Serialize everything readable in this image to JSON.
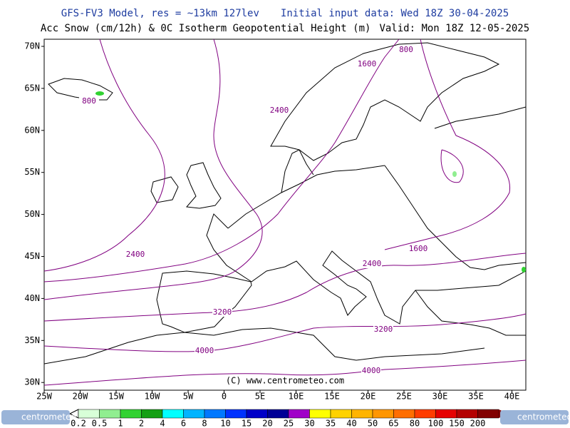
{
  "header": {
    "model": "GFS-FV3 Model, res = ~13km 127lev",
    "init": "Initial input data: Wed 18Z 30-04-2025",
    "product": "Acc Snow (cm/12h) & 0C Isotherm Geopotential Height (m)",
    "valid": "Valid: Mon 18Z 12-05-2025"
  },
  "map": {
    "lat_labels": [
      "70N",
      "65N",
      "60N",
      "55N",
      "50N",
      "45N",
      "40N",
      "35N",
      "30N"
    ],
    "lon_labels": [
      "25W",
      "20W",
      "15W",
      "10W",
      "5W",
      "0",
      "5E",
      "10E",
      "15E",
      "20E",
      "25E",
      "30E",
      "35E",
      "40E"
    ],
    "contour_labels": [
      "800",
      "1600",
      "800",
      "2400",
      "2400",
      "1600",
      "2400",
      "3200",
      "3200",
      "4000",
      "4000"
    ],
    "copyright": "(C) www.centrometeo.com"
  },
  "legend": {
    "labels": [
      "0.2",
      "0.5",
      "1",
      "2",
      "4",
      "6",
      "8",
      "10",
      "15",
      "20",
      "25",
      "30",
      "35",
      "40",
      "50",
      "65",
      "80",
      "100",
      "150",
      "200"
    ],
    "colors": [
      "#d8ffd8",
      "#90ee90",
      "#32d232",
      "#14a014",
      "#00ffff",
      "#00b4ff",
      "#0078ff",
      "#0032ff",
      "#0000c8",
      "#000096",
      "#a000c8",
      "#ffff00",
      "#ffd200",
      "#ffb400",
      "#ff9600",
      "#ff6e00",
      "#ff3c00",
      "#e60000",
      "#b40000",
      "#820000"
    ]
  },
  "logos": [
    "centrometeo",
    "centrometeo"
  ]
}
